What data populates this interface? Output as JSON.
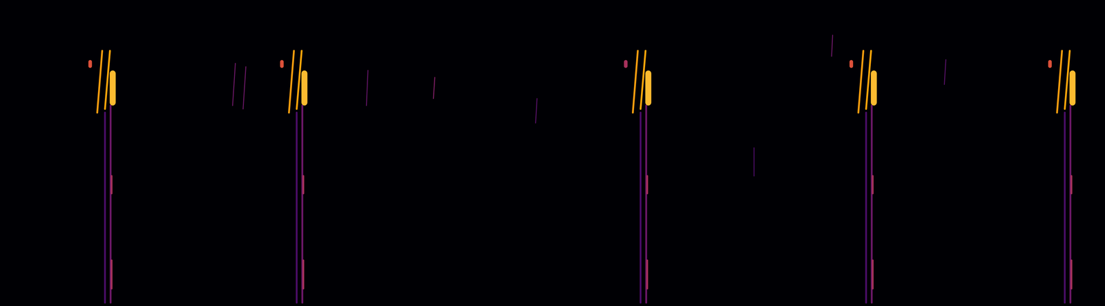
{
  "chart_data": {
    "type": "spectrogram",
    "tick_labels": false,
    "xlim": [
      0,
      100
    ],
    "ylim": [
      0,
      100
    ],
    "segments": [
      {
        "x": [
          8.16,
          8.16
        ],
        "y": [
          79.8,
          78.4
        ],
        "intensity": 0.6,
        "kind": "dot"
      },
      {
        "x": [
          8.8,
          9.25
        ],
        "y": [
          63.2,
          83.4
        ],
        "intensity": 0.78,
        "kind": "chirp"
      },
      {
        "x": [
          9.5,
          9.95
        ],
        "y": [
          64.4,
          83.4
        ],
        "intensity": 0.8,
        "kind": "chirp"
      },
      {
        "x": [
          10.01,
          10.01
        ],
        "y": [
          65.5,
          1.1
        ],
        "intensity": 0.3,
        "kind": "tail"
      },
      {
        "x": [
          9.5,
          9.5
        ],
        "y": [
          63.2,
          1.1
        ],
        "intensity": 0.22,
        "kind": "tail"
      },
      {
        "x": [
          10.1,
          10.1
        ],
        "y": [
          42.5,
          36.8
        ],
        "intensity": 0.45,
        "kind": "tail"
      },
      {
        "x": [
          10.1,
          10.1
        ],
        "y": [
          14.9,
          5.7
        ],
        "intensity": 0.45,
        "kind": "tail"
      },
      {
        "x": [
          10.2,
          10.2
        ],
        "y": [
          76.0,
          66.5
        ],
        "intensity": 0.85,
        "kind": "blob"
      },
      {
        "x": [
          25.51,
          25.51
        ],
        "y": [
          79.8,
          78.4
        ],
        "intensity": 0.6,
        "kind": "dot"
      },
      {
        "x": [
          26.15,
          26.6
        ],
        "y": [
          63.2,
          83.4
        ],
        "intensity": 0.78,
        "kind": "chirp"
      },
      {
        "x": [
          26.85,
          27.3
        ],
        "y": [
          64.4,
          83.4
        ],
        "intensity": 0.8,
        "kind": "chirp"
      },
      {
        "x": [
          27.36,
          27.36
        ],
        "y": [
          65.5,
          1.1
        ],
        "intensity": 0.3,
        "kind": "tail"
      },
      {
        "x": [
          26.85,
          26.85
        ],
        "y": [
          63.2,
          1.1
        ],
        "intensity": 0.22,
        "kind": "tail"
      },
      {
        "x": [
          27.45,
          27.45
        ],
        "y": [
          42.5,
          36.8
        ],
        "intensity": 0.45,
        "kind": "tail"
      },
      {
        "x": [
          27.45,
          27.45
        ],
        "y": [
          14.9,
          5.7
        ],
        "intensity": 0.45,
        "kind": "tail"
      },
      {
        "x": [
          27.55,
          27.55
        ],
        "y": [
          76.0,
          66.5
        ],
        "intensity": 0.85,
        "kind": "blob"
      },
      {
        "x": [
          56.63,
          56.63
        ],
        "y": [
          79.8,
          78.4
        ],
        "intensity": 0.45,
        "kind": "dot"
      },
      {
        "x": [
          57.27,
          57.72
        ],
        "y": [
          63.2,
          83.4
        ],
        "intensity": 0.78,
        "kind": "chirp"
      },
      {
        "x": [
          57.97,
          58.42
        ],
        "y": [
          64.4,
          83.4
        ],
        "intensity": 0.8,
        "kind": "chirp"
      },
      {
        "x": [
          58.48,
          58.48
        ],
        "y": [
          65.5,
          1.1
        ],
        "intensity": 0.3,
        "kind": "tail"
      },
      {
        "x": [
          57.97,
          57.97
        ],
        "y": [
          63.2,
          1.1
        ],
        "intensity": 0.22,
        "kind": "tail"
      },
      {
        "x": [
          58.57,
          58.57
        ],
        "y": [
          42.5,
          36.8
        ],
        "intensity": 0.45,
        "kind": "tail"
      },
      {
        "x": [
          58.57,
          58.57
        ],
        "y": [
          14.9,
          5.7
        ],
        "intensity": 0.45,
        "kind": "tail"
      },
      {
        "x": [
          58.67,
          58.67
        ],
        "y": [
          76.0,
          66.5
        ],
        "intensity": 0.85,
        "kind": "blob"
      },
      {
        "x": [
          77.04,
          77.04
        ],
        "y": [
          79.8,
          78.4
        ],
        "intensity": 0.6,
        "kind": "dot"
      },
      {
        "x": [
          77.68,
          78.13
        ],
        "y": [
          63.2,
          83.4
        ],
        "intensity": 0.78,
        "kind": "chirp"
      },
      {
        "x": [
          78.38,
          78.83
        ],
        "y": [
          64.4,
          83.4
        ],
        "intensity": 0.8,
        "kind": "chirp"
      },
      {
        "x": [
          78.89,
          78.89
        ],
        "y": [
          65.5,
          1.1
        ],
        "intensity": 0.3,
        "kind": "tail"
      },
      {
        "x": [
          78.38,
          78.38
        ],
        "y": [
          63.2,
          1.1
        ],
        "intensity": 0.22,
        "kind": "tail"
      },
      {
        "x": [
          78.98,
          78.98
        ],
        "y": [
          42.5,
          36.8
        ],
        "intensity": 0.45,
        "kind": "tail"
      },
      {
        "x": [
          78.98,
          78.98
        ],
        "y": [
          14.9,
          5.7
        ],
        "intensity": 0.45,
        "kind": "tail"
      },
      {
        "x": [
          79.08,
          79.08
        ],
        "y": [
          76.0,
          66.5
        ],
        "intensity": 0.85,
        "kind": "blob"
      },
      {
        "x": [
          95.02,
          95.02
        ],
        "y": [
          79.8,
          78.4
        ],
        "intensity": 0.6,
        "kind": "dot"
      },
      {
        "x": [
          95.66,
          96.11
        ],
        "y": [
          63.2,
          83.4
        ],
        "intensity": 0.78,
        "kind": "chirp"
      },
      {
        "x": [
          96.36,
          96.81
        ],
        "y": [
          64.4,
          83.4
        ],
        "intensity": 0.8,
        "kind": "chirp"
      },
      {
        "x": [
          96.87,
          96.87
        ],
        "y": [
          65.5,
          1.1
        ],
        "intensity": 0.3,
        "kind": "tail"
      },
      {
        "x": [
          96.36,
          96.36
        ],
        "y": [
          63.2,
          1.1
        ],
        "intensity": 0.22,
        "kind": "tail"
      },
      {
        "x": [
          96.96,
          96.96
        ],
        "y": [
          42.5,
          36.8
        ],
        "intensity": 0.45,
        "kind": "tail"
      },
      {
        "x": [
          96.96,
          96.96
        ],
        "y": [
          14.9,
          5.7
        ],
        "intensity": 0.45,
        "kind": "tail"
      },
      {
        "x": [
          97.06,
          97.06
        ],
        "y": [
          76.0,
          66.5
        ],
        "intensity": 0.85,
        "kind": "blob"
      },
      {
        "x": [
          21.05,
          21.3
        ],
        "y": [
          65.5,
          79.3
        ],
        "intensity": 0.3,
        "kind": "noise"
      },
      {
        "x": [
          22.0,
          22.25
        ],
        "y": [
          64.4,
          78.2
        ],
        "intensity": 0.3,
        "kind": "noise"
      },
      {
        "x": [
          33.16,
          33.3
        ],
        "y": [
          65.5,
          77.0
        ],
        "intensity": 0.28,
        "kind": "noise"
      },
      {
        "x": [
          39.22,
          39.35
        ],
        "y": [
          67.8,
          74.7
        ],
        "intensity": 0.35,
        "kind": "noise"
      },
      {
        "x": [
          48.47,
          48.6
        ],
        "y": [
          59.8,
          67.8
        ],
        "intensity": 0.25,
        "kind": "noise"
      },
      {
        "x": [
          75.26,
          75.35
        ],
        "y": [
          81.6,
          88.5
        ],
        "intensity": 0.3,
        "kind": "noise"
      },
      {
        "x": [
          68.24,
          68.24
        ],
        "y": [
          42.5,
          51.7
        ],
        "intensity": 0.22,
        "kind": "noise"
      },
      {
        "x": [
          85.46,
          85.6
        ],
        "y": [
          72.4,
          80.5
        ],
        "intensity": 0.25,
        "kind": "noise"
      }
    ]
  }
}
